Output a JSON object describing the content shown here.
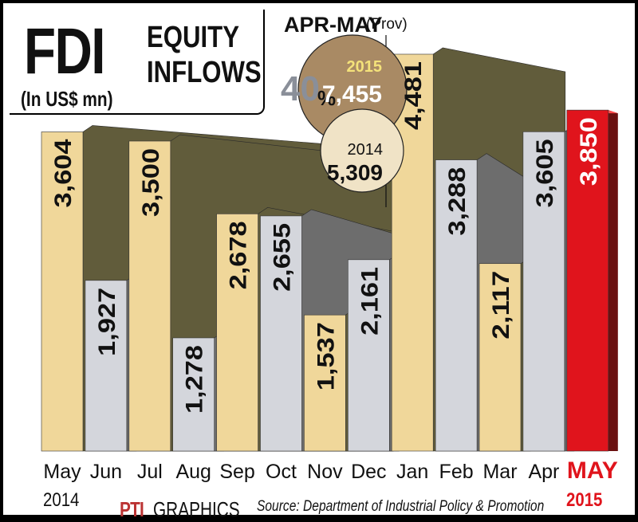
{
  "header": {
    "title_big": "FDI",
    "title_line1": "EQUITY",
    "title_line2": "INFLOWS",
    "unit": "(In US$ mn)"
  },
  "comparison": {
    "period": "APR-MAY",
    "period_note": "(Prov)",
    "growth": "40",
    "growth_unit": "%",
    "current_year": "2015",
    "current_value": "7,455",
    "previous_year": "2014",
    "previous_value": "5,309"
  },
  "footer": {
    "logo": "PTI",
    "logo_caption": "GRAPHICS",
    "source": "Source: Department of Industrial Policy & Promotion",
    "start_year": "2014",
    "end_year": "2015"
  },
  "colors": {
    "bar_tan": "#f0d79a",
    "bar_grey": "#d4d6dc",
    "shadow_olive": "#615c3b",
    "shadow_grey": "#6d6d6d",
    "highlight_red": "#e0141c",
    "highlight_dark": "#6a1010"
  },
  "chart_data": {
    "type": "bar",
    "categories": [
      "May",
      "Jun",
      "Jul",
      "Aug",
      "Sep",
      "Oct",
      "Nov",
      "Dec",
      "Jan",
      "Feb",
      "Mar",
      "Apr",
      "MAY"
    ],
    "values": [
      3604,
      1927,
      3500,
      1278,
      2678,
      2655,
      1537,
      2161,
      4481,
      3288,
      2117,
      3605,
      3850
    ],
    "value_labels": [
      "3,604",
      "1,927",
      "3,500",
      "1,278",
      "2,678",
      "2,655",
      "1,537",
      "2,161",
      "4,481",
      "3,288",
      "2,117",
      "3,605",
      "3,850"
    ],
    "bar_styles": [
      "tan",
      "grey",
      "tan",
      "grey",
      "tan",
      "grey",
      "tan",
      "grey",
      "tan",
      "grey",
      "tan",
      "grey",
      "red"
    ],
    "title": "FDI EQUITY INFLOWS",
    "ylabel": "(In US$ mn)",
    "ylim": [
      0,
      5000
    ],
    "grid": false,
    "legend": "none"
  }
}
